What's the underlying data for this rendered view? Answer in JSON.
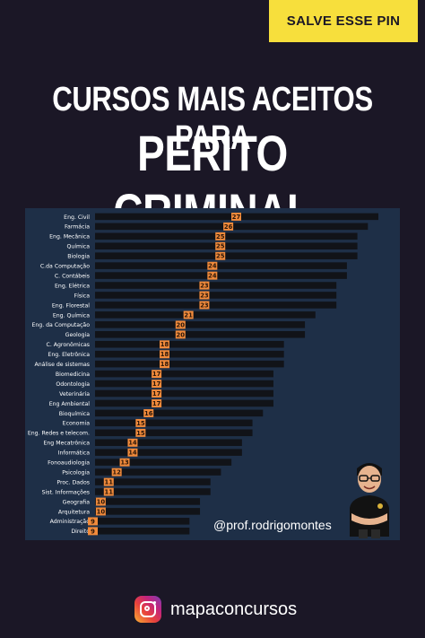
{
  "badge": {
    "label": "SALVE ESSE PIN"
  },
  "title": {
    "line1": "CURSOS MAIS ACEITOS PARA",
    "line2": "PERITO CRIMINAL"
  },
  "handle": "@prof.rodrigomontes",
  "footer": {
    "account": "mapaconcursos",
    "icon": "instagram-icon"
  },
  "colors": {
    "background": "#1b1726",
    "panel": "#1e2f47",
    "bar": "#111318",
    "label": "#f08a3b",
    "badge": "#f7df3c"
  },
  "chart_data": {
    "type": "bar",
    "orientation": "horizontal",
    "title": "CURSOS MAIS ACEITOS PARA PERITO CRIMINAL",
    "categories": [
      "Eng. Civil",
      "Farmácia",
      "Eng. Mecânica",
      "Química",
      "Biologia",
      "C.da Computação",
      "C. Contábeis",
      "Eng. Elétrica",
      "Física",
      "Eng. Florestal",
      "Eng. Química",
      "Eng. da Computação",
      "Geologia",
      "C. Agronômicas",
      "Eng. Eletrônica",
      "Análise de sistemas",
      "Biomedicina",
      "Odontologia",
      "Veterinária",
      "Eng Ambiental",
      "Bioquímica",
      "Economia",
      "Eng. Redes e telecom.",
      "Eng Mecatrônica",
      "Informática",
      "Fonoaudiologia",
      "Psicologia",
      "Proc. Dados",
      "Sist. Informações",
      "Geografia",
      "Arquitetura",
      "Administração",
      "Direito"
    ],
    "values": [
      27,
      26,
      25,
      25,
      25,
      24,
      24,
      23,
      23,
      23,
      21,
      20,
      20,
      18,
      18,
      18,
      17,
      17,
      17,
      17,
      16,
      15,
      15,
      14,
      14,
      13,
      12,
      11,
      11,
      10,
      10,
      9,
      9
    ],
    "xlim": [
      0,
      27
    ]
  }
}
